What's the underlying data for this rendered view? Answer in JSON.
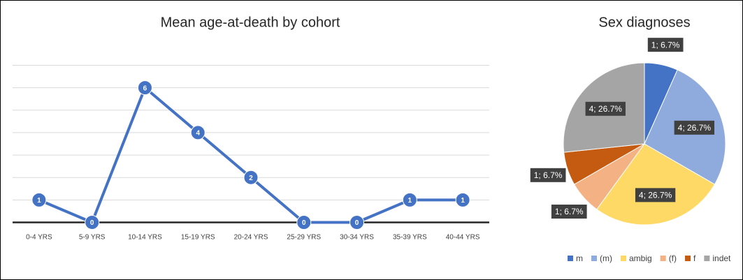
{
  "chart_data": [
    {
      "type": "line",
      "title": "Mean age-at-death by cohort",
      "categories": [
        "0-4 YRS",
        "5-9 YRS",
        "10-14 YRS",
        "15-19 YRS",
        "20-24 YRS",
        "25-29 YRS",
        "30-34 YRS",
        "35-39 YRS",
        "40-44 YRS"
      ],
      "series": [
        {
          "name": "Mean age-at-death",
          "color": "#4472c4",
          "values": [
            1,
            0,
            6,
            4,
            2,
            0,
            0,
            1,
            1
          ]
        }
      ],
      "ylim": [
        0,
        7
      ],
      "yticks": [
        0,
        1,
        2,
        3,
        4,
        5,
        6,
        7
      ],
      "grid": true
    },
    {
      "type": "pie",
      "title": "Sex diagnoses",
      "categories": [
        "m",
        "(m)",
        "ambig",
        "(f)",
        "f",
        "indet"
      ],
      "values": [
        1,
        4,
        4,
        1,
        1,
        4
      ],
      "value_labels": [
        "1; 6.7%",
        "4; 26.7%",
        "4; 26.7%",
        "1; 6.7%",
        "1; 6.7%",
        "4; 26.7%"
      ],
      "colors": [
        "#4472c4",
        "#8faadc",
        "#ffd966",
        "#f4b183",
        "#c55a11",
        "#a5a5a5"
      ],
      "legend": "bottom"
    }
  ]
}
